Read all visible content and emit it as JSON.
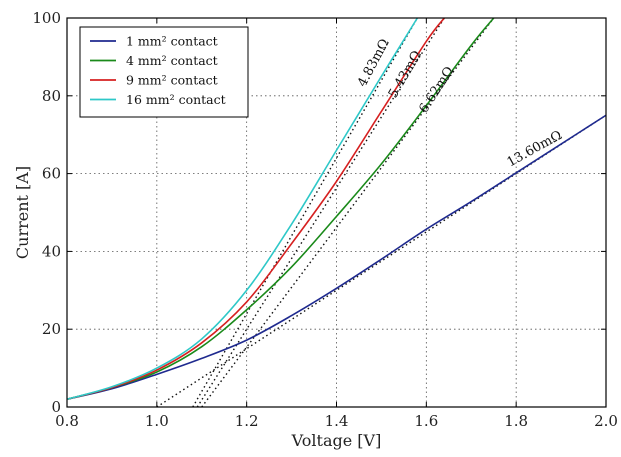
{
  "chart_data": {
    "type": "line",
    "xlabel": "Voltage [V]",
    "ylabel": "Current [A]",
    "xlim": [
      0.8,
      2.0
    ],
    "ylim": [
      0,
      100
    ],
    "xticks": [
      "0.8",
      "1.0",
      "1.2",
      "1.4",
      "1.6",
      "1.8",
      "2.0"
    ],
    "yticks": [
      "0",
      "20",
      "40",
      "60",
      "80",
      "100"
    ],
    "grid": true,
    "legend_position": "top-left",
    "series": [
      {
        "name": "1 mm² contact",
        "color": "#1f2a8f",
        "x": [
          0.8,
          0.9,
          1.0,
          1.1,
          1.2,
          1.3,
          1.4,
          1.5,
          1.6,
          1.7,
          1.8,
          1.9,
          2.0
        ],
        "y": [
          2,
          4.7,
          8.4,
          12.5,
          17.2,
          23.5,
          30.5,
          38,
          45.7,
          52.8,
          60.2,
          67.6,
          75
        ]
      },
      {
        "name": "4 mm² contact",
        "color": "#1a8a1a",
        "x": [
          0.8,
          0.9,
          1.0,
          1.1,
          1.2,
          1.3,
          1.4,
          1.5,
          1.6,
          1.7,
          1.75
        ],
        "y": [
          2,
          5,
          9,
          15.5,
          25,
          36,
          49,
          62.5,
          77.5,
          93,
          100
        ]
      },
      {
        "name": "9 mm² contact",
        "color": "#d62020",
        "x": [
          0.8,
          0.9,
          1.0,
          1.1,
          1.2,
          1.3,
          1.4,
          1.5,
          1.6,
          1.64
        ],
        "y": [
          2,
          5,
          9.5,
          16.5,
          27,
          42,
          58,
          76,
          94,
          100
        ]
      },
      {
        "name": "16 mm² contact",
        "color": "#2ec8c8",
        "x": [
          0.8,
          0.9,
          1.0,
          1.1,
          1.2,
          1.3,
          1.4,
          1.5,
          1.58
        ],
        "y": [
          2,
          5.2,
          10,
          17.5,
          30,
          47,
          66,
          85,
          100
        ]
      }
    ],
    "fit_lines": [
      {
        "x": [
          1.0,
          2.0
        ],
        "y": [
          0,
          75
        ]
      },
      {
        "x": [
          1.1,
          1.75
        ],
        "y": [
          0,
          100
        ]
      },
      {
        "x": [
          1.09,
          1.64
        ],
        "y": [
          0,
          100
        ]
      },
      {
        "x": [
          1.08,
          1.58
        ],
        "y": [
          0,
          100
        ]
      }
    ],
    "annotations": [
      {
        "text": "13.60mΩ",
        "x": 1.845,
        "y": 65.5,
        "rotation": -29
      },
      {
        "text": "6.62mΩ",
        "x": 1.63,
        "y": 81,
        "rotation": -57
      },
      {
        "text": "5.43mΩ",
        "x": 1.56,
        "y": 85,
        "rotation": -60
      },
      {
        "text": "4.83mΩ",
        "x": 1.49,
        "y": 88,
        "rotation": -62
      }
    ]
  }
}
